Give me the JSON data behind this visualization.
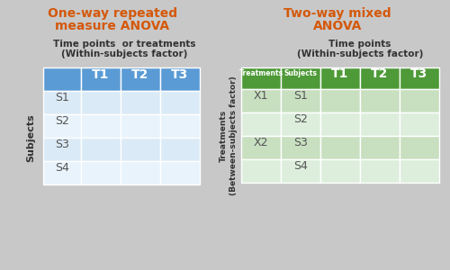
{
  "bg_color": "#c8c8c8",
  "title_color": "#d4580a",
  "left_title_line1": "One-way repeated",
  "left_title_line2": "measure ANOVA",
  "right_title_line1": "Two-way mixed",
  "right_title_line2": "ANOVA",
  "left_subtitle_line1": "Time points  or treatments",
  "left_subtitle_line2": "(Within-subjects factor)",
  "right_subtitle_line1": "Time points",
  "right_subtitle_line2": "(Within-subjects factor)",
  "left_axis_label": "Subjects",
  "right_axis_label_line1": "Treatments",
  "right_axis_label_line2": "(Between-subjects factor)",
  "blue_header": "#5b9bd5",
  "blue_light": "#daeaf6",
  "blue_lighter": "#e8f3fb",
  "green_header": "#4e9a38",
  "green_light": "#c8dfc0",
  "green_lighter": "#ddeedd",
  "header_text_color": "#ffffff",
  "cell_text_color": "#555555",
  "label_text_color": "#333333",
  "left_col_headers": [
    "T1",
    "T2",
    "T3"
  ],
  "left_row_headers": [
    "S1",
    "S2",
    "S3",
    "S4"
  ],
  "right_col_headers": [
    "T1",
    "T2",
    "T3"
  ],
  "right_treat_header": "Treatments",
  "right_subj_header": "Subjects",
  "right_row_data": [
    [
      "X1",
      "S1"
    ],
    [
      "",
      "S2"
    ],
    [
      "X2",
      "S3"
    ],
    [
      "",
      "S4"
    ]
  ]
}
